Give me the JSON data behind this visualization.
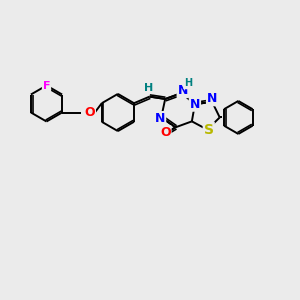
{
  "bg_color": "#ebebeb",
  "bond_color": "#000000",
  "bond_width": 1.4,
  "atom_colors": {
    "F": "#ff00ff",
    "O": "#ff0000",
    "N": "#0000ff",
    "S": "#b8b800",
    "H_teal": "#008080",
    "C": "#000000"
  },
  "figsize": [
    3.0,
    3.0
  ],
  "dpi": 100
}
